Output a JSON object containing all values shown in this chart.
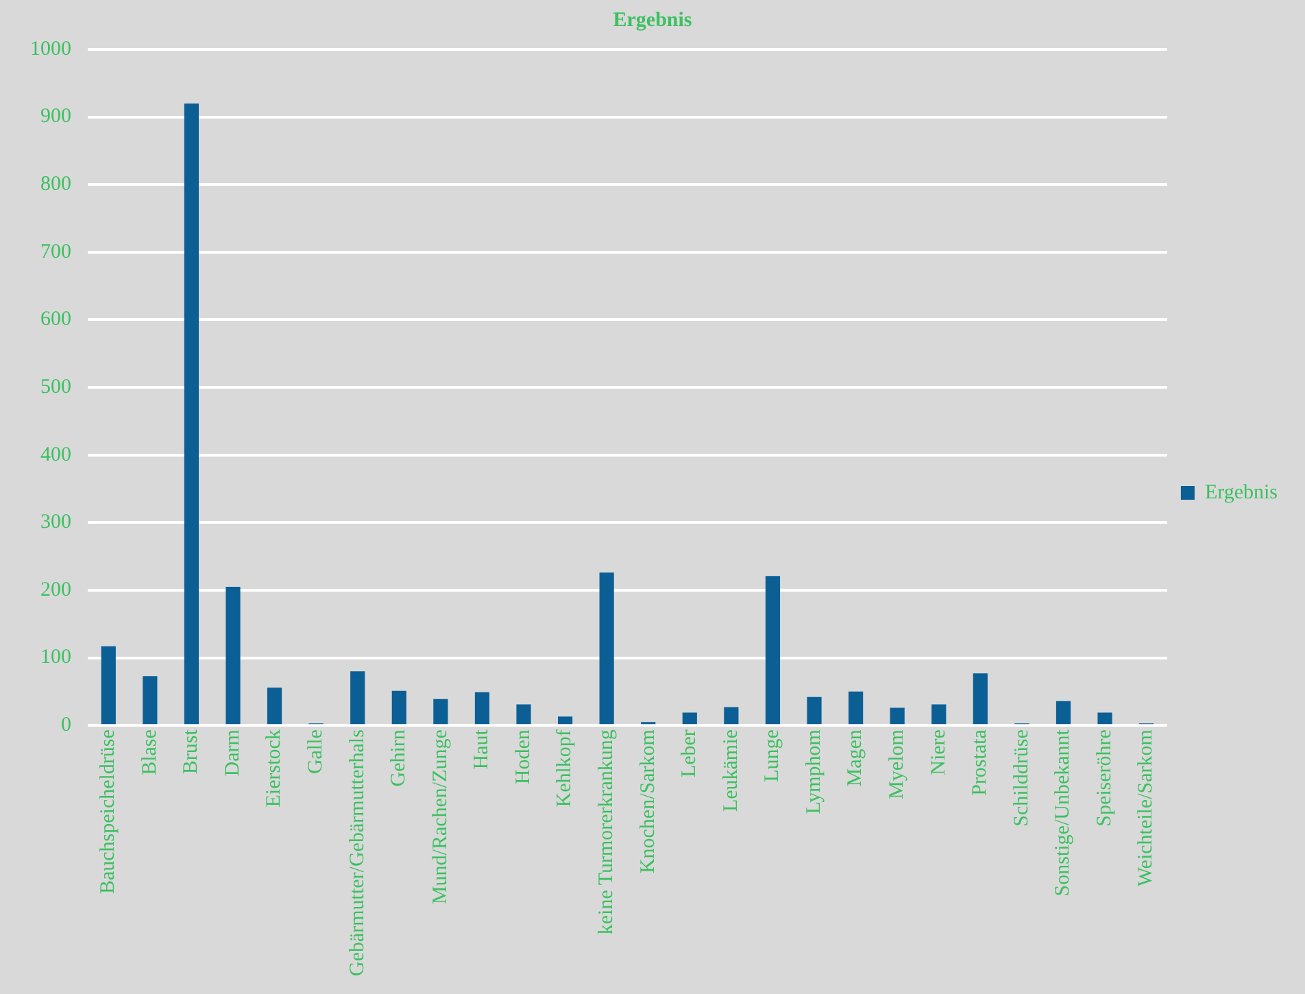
{
  "chart_data": {
    "type": "bar",
    "title": "Ergebnis",
    "categories": [
      "Bauchspeicheldrüse",
      "Blase",
      "Brust",
      "Darm",
      "Eierstock",
      "Galle",
      "Gebärmutter/Gebärmutterhals",
      "Gehirn",
      "Mund/Rachen/Zunge",
      "Haut",
      "Hoden",
      "Kehlkopf",
      "keine Turmorerkrankung",
      "Knochen/Sarkom",
      "Leber",
      "Leukämie",
      "Lunge",
      "Lymphom",
      "Magen",
      "Myelom",
      "Niere",
      "Prostata",
      "Schilddrüse",
      "Sonstige/Unbekannt",
      "Speiseröhre",
      "Weichteile/Sarkom"
    ],
    "series": [
      {
        "name": "Ergebnis",
        "color": "#0b5f95",
        "values": [
          117,
          73,
          920,
          205,
          56,
          3,
          80,
          51,
          39,
          49,
          31,
          13,
          226,
          5,
          19,
          27,
          221,
          42,
          50,
          26,
          31,
          77,
          3,
          36,
          19,
          3
        ]
      }
    ],
    "ylim": [
      0,
      1000
    ],
    "yticks": [
      0,
      100,
      200,
      300,
      400,
      500,
      600,
      700,
      800,
      900,
      1000
    ],
    "grid": "y",
    "legend": "right"
  }
}
